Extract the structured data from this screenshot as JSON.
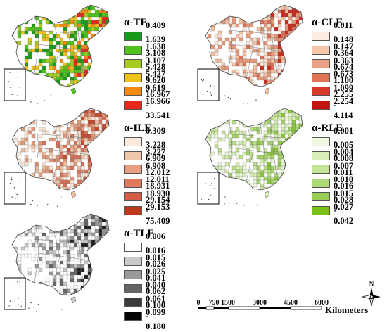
{
  "panels": [
    {
      "title": "α-TE",
      "fill_palette": [
        "#1a9a1a",
        "#4fc21c",
        "#a6cc22",
        "#f2c21a",
        "#f58a12",
        "#e6281a"
      ],
      "classes": [
        {
          "range": "0.409 - 1.638",
          "color": "#1a9a1a"
        },
        {
          "range": "1.639 - 3.107",
          "color": "#4fc21c"
        },
        {
          "range": "3.108 - 5.427",
          "color": "#a6cc22"
        },
        {
          "range": "5.428 - 9.619",
          "color": "#f2c21a"
        },
        {
          "range": "9.620 - 16.966",
          "color": "#f58a12"
        },
        {
          "range": "16.967 - 33.541",
          "color": "#e6281a"
        }
      ]
    },
    {
      "title": "α-CLE",
      "fill_palette": [
        "#fae6d8",
        "#f4c3a4",
        "#e99a7c",
        "#de7257",
        "#cc2a1e"
      ],
      "classes": [
        {
          "range": "0.011 - 0.147",
          "color": "#fcece0"
        },
        {
          "range": "0.148 - 0.363",
          "color": "#f6c9ac"
        },
        {
          "range": "0.364 - 0.673",
          "color": "#eba084"
        },
        {
          "range": "0.674 - 1.099",
          "color": "#e27458"
        },
        {
          "range": "1.100 - 2.254",
          "color": "#d53a2a"
        },
        {
          "range": "2.255 - 4.114",
          "color": "#c41410"
        }
      ]
    },
    {
      "title": "α-ILE",
      "fill_palette": [
        "#f8e4d4",
        "#eec0a4",
        "#e29a7c",
        "#d6745a",
        "#c64a30"
      ],
      "classes": [
        {
          "range": "0.309 - 3.227",
          "color": "#fbeadb"
        },
        {
          "range": "3.228 - 6.908",
          "color": "#f1c6aa"
        },
        {
          "range": "6.909 - 12.011",
          "color": "#e89e80"
        },
        {
          "range": "12.012 - 18.930",
          "color": "#df7a5e"
        },
        {
          "range": "18.931 - 29.153",
          "color": "#d25d44"
        },
        {
          "range": "29.154 - 75.409",
          "color": "#bc3a1c"
        }
      ]
    },
    {
      "title": "α-RLE",
      "fill_palette": [
        "#ecf6dc",
        "#d4ecb2",
        "#bee08c",
        "#a6d46a",
        "#8cc83e"
      ],
      "classes": [
        {
          "range": "0.001 - 0.004",
          "color": "#eff8e1"
        },
        {
          "range": "0.005 - 0.007",
          "color": "#d8efb8"
        },
        {
          "range": "0.008 - 0.010",
          "color": "#c4e496"
        },
        {
          "range": "0.011 - 0.015",
          "color": "#aed978"
        },
        {
          "range": "0.016 - 0.027",
          "color": "#98ce54"
        },
        {
          "range": "0.028 - 0.042",
          "color": "#7cc11a"
        }
      ]
    },
    {
      "title": "α-TLE",
      "fill_palette": [
        "#ffffff",
        "#c8c8c8",
        "#969696",
        "#646464",
        "#1e1e1e"
      ],
      "classes": [
        {
          "range": "0.006 - 0.015",
          "color": "#ffffff"
        },
        {
          "range": "0.016 - 0.025",
          "color": "#cacaca"
        },
        {
          "range": "0.026 - 0.040",
          "color": "#9a9a9a"
        },
        {
          "range": "0.041 - 0.061",
          "color": "#646464"
        },
        {
          "range": "0.062 - 0.099",
          "color": "#3a3a3a"
        },
        {
          "range": "0.100 - 0.180",
          "color": "#050505"
        }
      ]
    }
  ],
  "scale": {
    "ticks": [
      "0",
      "750",
      "1500",
      "3000",
      "4500",
      "6000"
    ],
    "unit": "Kilometers"
  },
  "north_label": "N"
}
